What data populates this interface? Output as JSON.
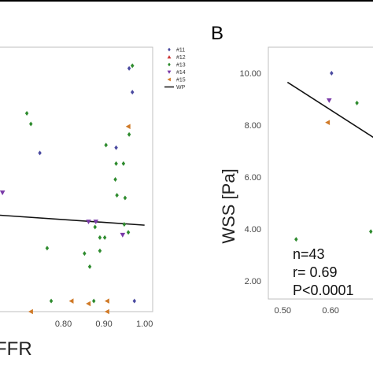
{
  "chart_data": [
    {
      "type": "scatter",
      "panel_label": "",
      "xlabel": "FFR",
      "ylabel": "",
      "xlim": [
        0.64,
        1.02
      ],
      "ylim": [
        0.0,
        1.0
      ],
      "x_ticks": [
        "0.80",
        "0.90",
        "1.00"
      ],
      "grid": false,
      "legend": {
        "position": "top-right",
        "entries": [
          "#11",
          "#12",
          "#13",
          "#14",
          "#15",
          "WP"
        ]
      },
      "series": [
        {
          "name": "#11",
          "color": "#4a4aa0",
          "marker": "diamond",
          "points": [
            [
              0.742,
              0.6
            ],
            [
              0.93,
              0.62
            ],
            [
              0.962,
              0.92
            ],
            [
              0.97,
              0.83
            ],
            [
              0.975,
              0.04
            ]
          ]
        },
        {
          "name": "#12",
          "color": "#cc3333",
          "marker": "triangle-up",
          "points": []
        },
        {
          "name": "#13",
          "color": "#2e8b2e",
          "marker": "diamond",
          "points": [
            [
              0.71,
              0.75
            ],
            [
              0.72,
              0.71
            ],
            [
              0.76,
              0.24
            ],
            [
              0.77,
              0.04
            ],
            [
              0.852,
              0.22
            ],
            [
              0.865,
              0.17
            ],
            [
              0.875,
              0.04
            ],
            [
              0.878,
              0.32
            ],
            [
              0.89,
              0.28
            ],
            [
              0.89,
              0.23
            ],
            [
              0.905,
              0.63
            ],
            [
              0.902,
              0.28
            ],
            [
              0.928,
              0.5
            ],
            [
              0.93,
              0.56
            ],
            [
              0.932,
              0.44
            ],
            [
              0.948,
              0.56
            ],
            [
              0.95,
              0.33
            ],
            [
              0.952,
              0.43
            ],
            [
              0.96,
              0.3
            ],
            [
              0.962,
              0.67
            ],
            [
              0.97,
              0.93
            ]
          ]
        },
        {
          "name": "#14",
          "color": "#7a3aa8",
          "marker": "triangle-down",
          "points": [
            [
              0.65,
              0.45
            ],
            [
              0.862,
              0.34
            ],
            [
              0.88,
              0.34
            ],
            [
              0.946,
              0.29
            ]
          ]
        },
        {
          "name": "#15",
          "color": "#d07a28",
          "marker": "triangle-left",
          "points": [
            [
              0.72,
              0.0
            ],
            [
              0.82,
              0.04
            ],
            [
              0.862,
              0.03
            ],
            [
              0.908,
              0.04
            ],
            [
              0.908,
              0.0
            ],
            [
              0.96,
              0.7
            ]
          ]
        }
      ],
      "fit_line": {
        "name": "WP",
        "x": [
          0.64,
          1.0
        ],
        "y": [
          0.365,
          0.327
        ]
      }
    },
    {
      "type": "scatter",
      "panel_label": "B",
      "xlabel": "",
      "ylabel": "WSS [Pa]",
      "xlim": [
        0.47,
        0.7
      ],
      "ylim": [
        1.3,
        11.0
      ],
      "x_ticks": [
        "0.50",
        "0.60"
      ],
      "y_ticks": [
        "2.00",
        "4.00",
        "6.00",
        "8.00",
        "10.00"
      ],
      "grid": false,
      "series": [
        {
          "name": "#11",
          "color": "#4a4aa0",
          "marker": "diamond",
          "points": [
            [
              0.602,
              10.0
            ]
          ]
        },
        {
          "name": "#13",
          "color": "#2e8b2e",
          "marker": "diamond",
          "points": [
            [
              0.528,
              3.6
            ],
            [
              0.655,
              8.85
            ],
            [
              0.684,
              3.9
            ]
          ]
        },
        {
          "name": "#14",
          "color": "#7a3aa8",
          "marker": "triangle-down",
          "points": [
            [
              0.597,
              8.95
            ]
          ]
        },
        {
          "name": "#15",
          "color": "#d07a28",
          "marker": "triangle-left",
          "points": [
            [
              0.594,
              8.1
            ]
          ]
        }
      ],
      "fit_line": {
        "x": [
          0.51,
          0.7
        ],
        "y": [
          9.65,
          7.4
        ]
      },
      "stats": [
        "n=43",
        "r= 0.69",
        "P<0.0001"
      ]
    }
  ]
}
